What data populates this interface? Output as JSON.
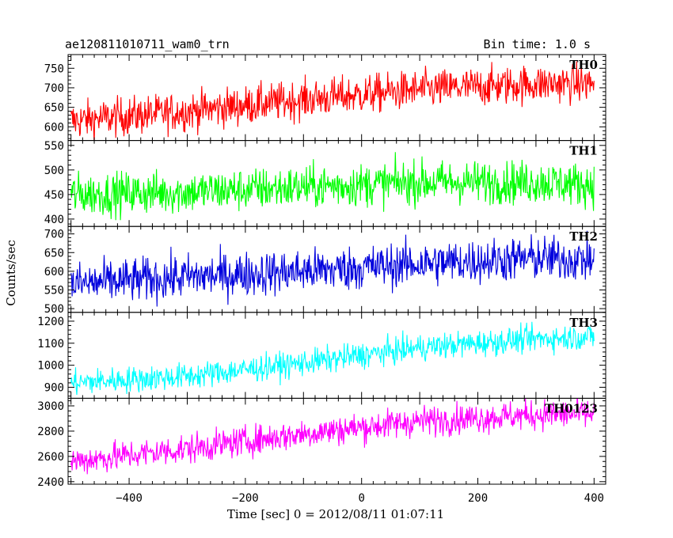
{
  "header": {
    "left": "ae120811010711_wam0_trn",
    "right": "Bin time: 1.0 s"
  },
  "xlabel": "Time [sec] 0 = 2012/08/11 01:07:11",
  "ylabel": "Counts/sec",
  "x_ticks": [
    "−400",
    "−200",
    "0",
    "200",
    "400"
  ],
  "chart_data": {
    "type": "line",
    "title": "ae120811010711_wam0_trn",
    "subtitle": "Bin time: 1.0 s",
    "xlabel": "Time [sec] 0 = 2012/08/11 01:07:11",
    "ylabel": "Counts/sec",
    "xlim": [
      -505,
      420
    ],
    "x_range_data": [
      -500,
      400
    ],
    "grid": false,
    "panels": [
      {
        "name": "TH0",
        "color": "#ff0000",
        "ylim": [
          565,
          785
        ],
        "yticks": [
          600,
          650,
          700,
          750
        ],
        "trend_x": [
          -500,
          -300,
          -100,
          100,
          300,
          400
        ],
        "trend_y": [
          615,
          640,
          670,
          695,
          710,
          712
        ],
        "noise": 25
      },
      {
        "name": "TH1",
        "color": "#00ff00",
        "ylim": [
          385,
          560
        ],
        "yticks": [
          400,
          450,
          500,
          550
        ],
        "trend_x": [
          -500,
          -300,
          -100,
          100,
          300,
          400
        ],
        "trend_y": [
          450,
          455,
          465,
          475,
          475,
          470
        ],
        "noise": 22
      },
      {
        "name": "TH2",
        "color": "#0000dd",
        "ylim": [
          490,
          720
        ],
        "yticks": [
          500,
          550,
          600,
          650,
          700
        ],
        "trend_x": [
          -500,
          -300,
          -100,
          100,
          300,
          400
        ],
        "trend_y": [
          565,
          585,
          600,
          620,
          635,
          630
        ],
        "noise": 30
      },
      {
        "name": "TH3",
        "color": "#00ffff",
        "ylim": [
          850,
          1240
        ],
        "yticks": [
          900,
          1000,
          1100,
          1200
        ],
        "trend_x": [
          -500,
          -300,
          -100,
          100,
          300,
          400
        ],
        "trend_y": [
          920,
          950,
          1010,
          1080,
          1120,
          1130
        ],
        "noise": 30
      },
      {
        "name": "TH0123",
        "color": "#ff00ff",
        "ylim": [
          2380,
          3060
        ],
        "yticks": [
          2400,
          2600,
          2800,
          3000
        ],
        "trend_x": [
          -500,
          -300,
          -100,
          100,
          300,
          400
        ],
        "trend_y": [
          2560,
          2660,
          2780,
          2880,
          2930,
          2935
        ],
        "noise": 60
      }
    ]
  }
}
